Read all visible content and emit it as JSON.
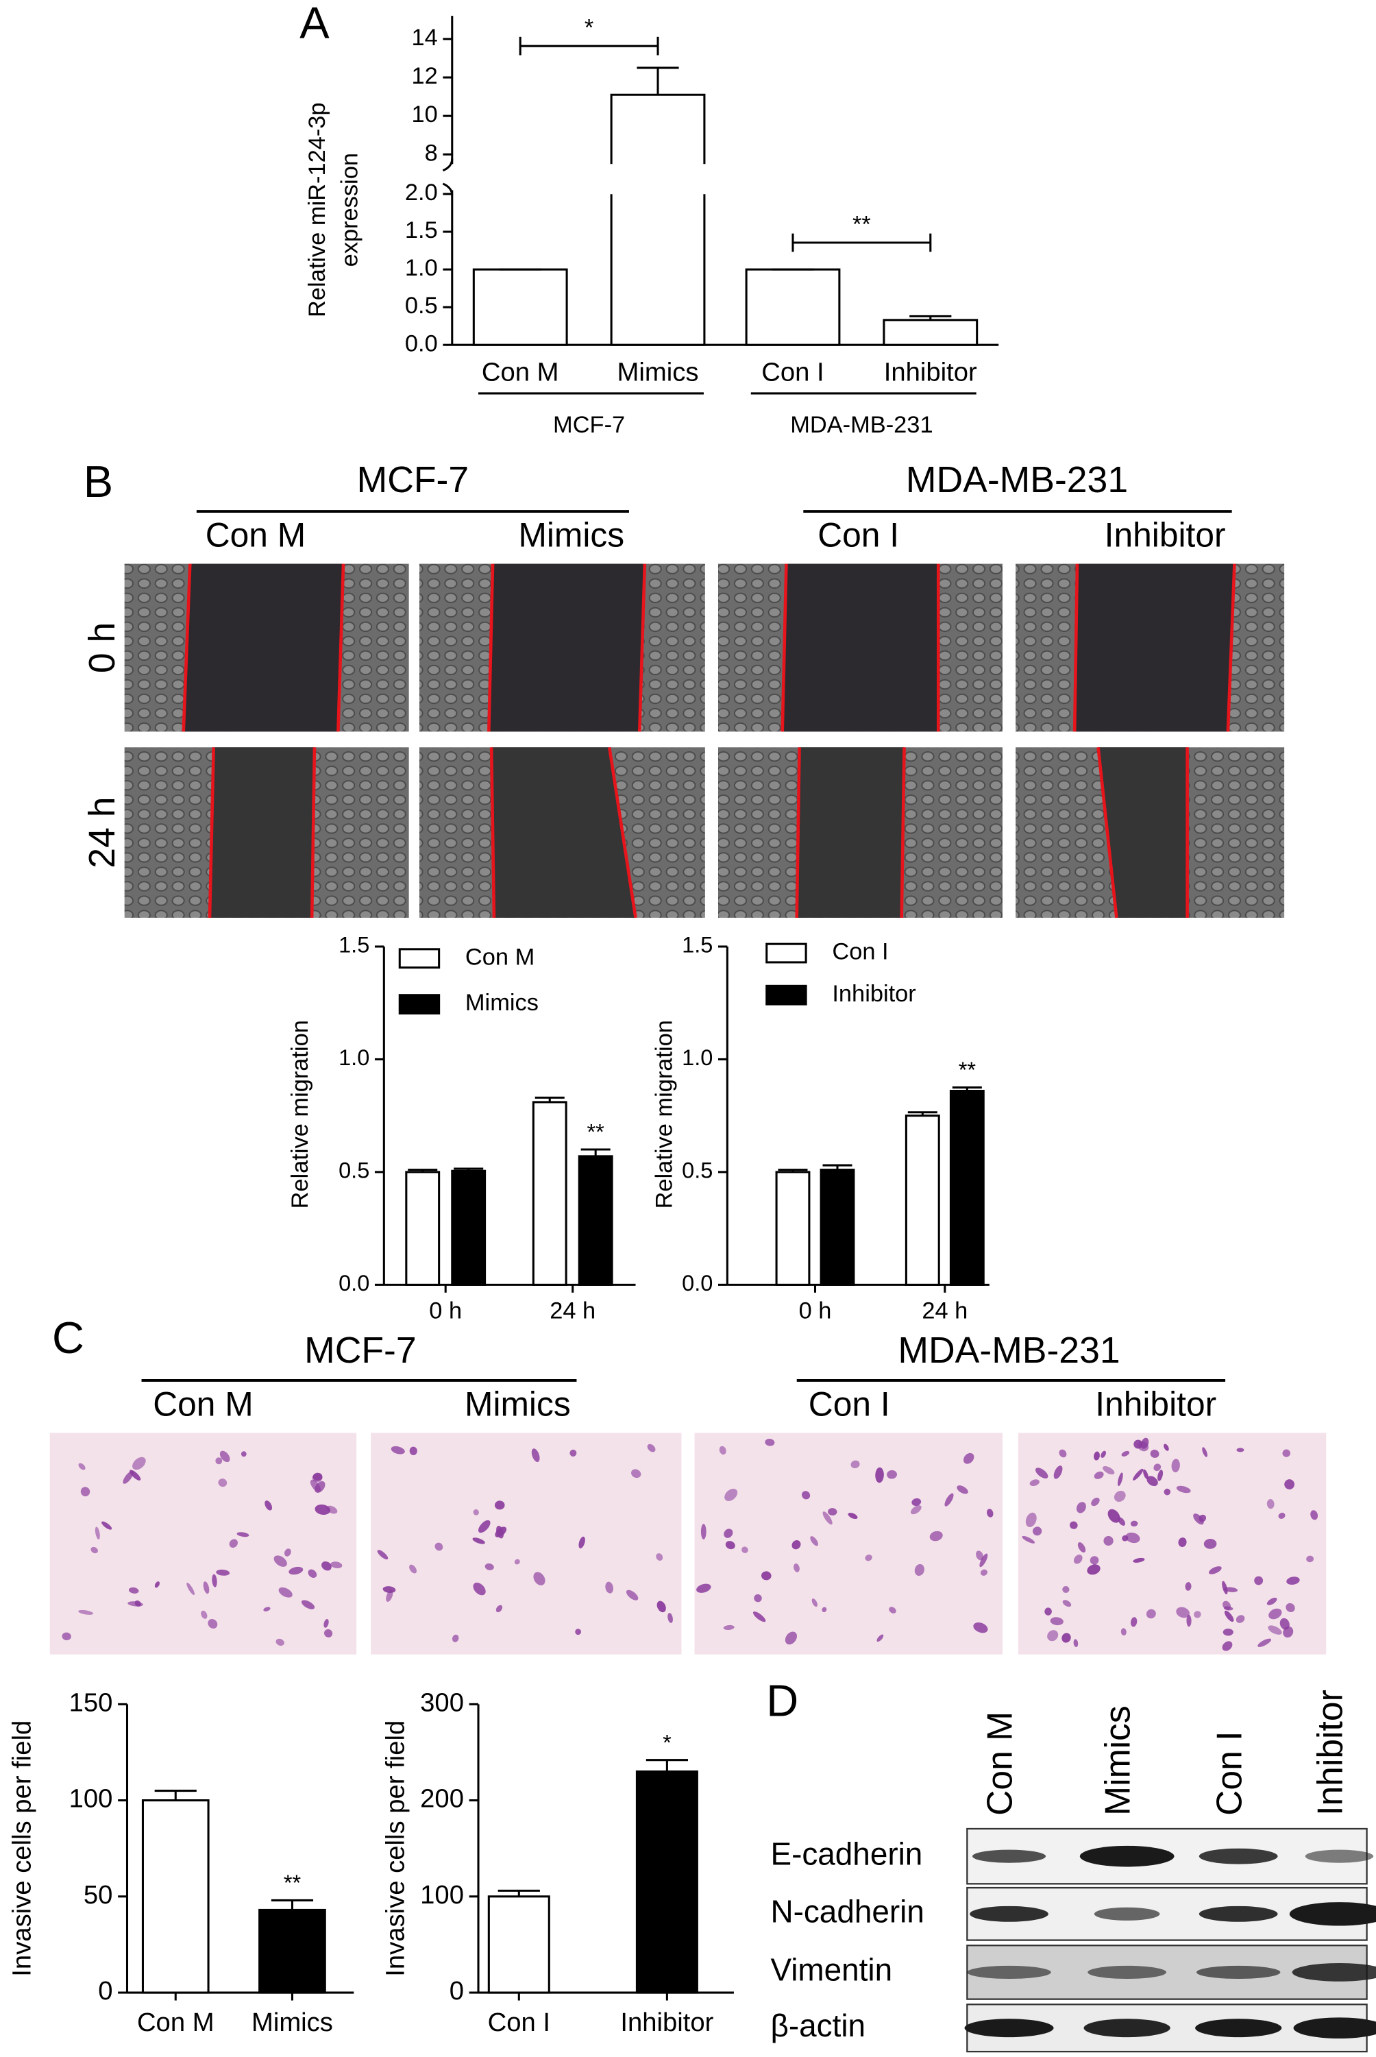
{
  "panel_labels": [
    "A",
    "B",
    "C",
    "D"
  ],
  "chart_data": [
    {
      "type": "bar",
      "categories": [
        "Con M",
        "Mimics",
        "Con I",
        "Inhibitor"
      ],
      "values": [
        1,
        11.1,
        1,
        0.33
      ],
      "errors": [
        0,
        1.4,
        0,
        0.05
      ],
      "color": "#ffffff",
      "ylabel": [
        "Relative miR-124-3p",
        "expression"
      ],
      "ylim": [
        0,
        2.05
      ],
      "yticks": [
        {
          "value": 0,
          "label": "0.0"
        },
        {
          "value": 0.5,
          "label": "0.5"
        },
        {
          "value": 1,
          "label": "1.0"
        },
        {
          "value": 1.5,
          "label": "1.5"
        },
        {
          "value": 2,
          "label": "2.0"
        }
      ],
      "axis_break": true,
      "ylim_upper": [
        7.5,
        15.2
      ],
      "yticks_upper": [
        8,
        10,
        12,
        14
      ],
      "groups": [
        {
          "label": "MCF-7",
          "categories": [
            "Con M",
            "Mimics"
          ]
        },
        {
          "label": "MDA-MB-231",
          "categories": [
            "Con I",
            "Inhibitor"
          ]
        }
      ],
      "brackets": [
        {
          "text": "*",
          "from": "Con M",
          "to": "Mimics"
        },
        {
          "text": "**",
          "from": "Con I",
          "to": "Inhibitor"
        }
      ]
    },
    {
      "type": "grouped_bar",
      "categories": [
        "0 h",
        "24 h"
      ],
      "series": [
        {
          "name": "Con M",
          "color": "#ffffff",
          "values": [
            0.5,
            0.81
          ],
          "errors": [
            0.01,
            0.02
          ]
        },
        {
          "name": "Mimics",
          "color": "#000000",
          "values": [
            0.505,
            0.57
          ],
          "errors": [
            0.01,
            0.03
          ]
        }
      ],
      "ylabel": "Relative migration",
      "ylim": [
        0,
        1.5
      ],
      "yticks": [
        {
          "value": 0,
          "label": "0.0"
        },
        {
          "value": 0.5,
          "label": "0.5"
        },
        {
          "value": 1,
          "label": "1.0"
        },
        {
          "value": 1.5,
          "label": "1.5"
        }
      ],
      "legend": "upper left",
      "annotations": [
        {
          "text": "**",
          "series": "Mimics",
          "category": "24 h"
        }
      ]
    },
    {
      "type": "grouped_bar",
      "categories": [
        "0 h",
        "24 h"
      ],
      "series": [
        {
          "name": "Con I",
          "color": "#ffffff",
          "values": [
            0.5,
            0.75
          ],
          "errors": [
            0.01,
            0.015
          ]
        },
        {
          "name": "Inhibitor",
          "color": "#000000",
          "values": [
            0.51,
            0.86
          ],
          "errors": [
            0.02,
            0.015
          ]
        }
      ],
      "ylabel": "Relative migration",
      "ylim": [
        0,
        1.5
      ],
      "yticks": [
        {
          "value": 0,
          "label": "0.0"
        },
        {
          "value": 0.5,
          "label": "0.5"
        },
        {
          "value": 1,
          "label": "1.0"
        },
        {
          "value": 1.5,
          "label": "1.5"
        }
      ],
      "legend": "upper left",
      "annotations": [
        {
          "text": "**",
          "series": "Inhibitor",
          "category": "24 h"
        }
      ]
    },
    {
      "type": "bar",
      "categories": [
        "Con M",
        "Mimics"
      ],
      "values": [
        100,
        43
      ],
      "errors": [
        5,
        5
      ],
      "colors": [
        "#ffffff",
        "#000000"
      ],
      "ylabel": "Invasive cells per field",
      "ylim": [
        0,
        150
      ],
      "yticks": [
        0,
        50,
        100,
        150
      ],
      "annotations": [
        {
          "text": "**",
          "category": "Mimics"
        }
      ]
    },
    {
      "type": "bar",
      "categories": [
        "Con I",
        "Inhibitor"
      ],
      "values": [
        100,
        230
      ],
      "errors": [
        6,
        12
      ],
      "colors": [
        "#ffffff",
        "#000000"
      ],
      "ylabel": "Invasive cells per field",
      "ylim": [
        0,
        300
      ],
      "yticks": [
        0,
        100,
        200,
        300
      ],
      "annotations": [
        {
          "text": "*",
          "category": "Inhibitor"
        }
      ]
    }
  ],
  "migration_assay": {
    "cell_lines": [
      {
        "name": "MCF-7",
        "groups": [
          "Con M",
          "Mimics"
        ]
      },
      {
        "name": "MDA-MB-231",
        "groups": [
          "Con I",
          "Inhibitor"
        ]
      }
    ],
    "timepoints": [
      "0 h",
      "24 h"
    ]
  },
  "invasion_assay": {
    "cell_lines": [
      {
        "name": "MCF-7",
        "groups": [
          "Con M",
          "Mimics"
        ]
      },
      {
        "name": "MDA-MB-231",
        "groups": [
          "Con I",
          "Inhibitor"
        ]
      }
    ]
  },
  "western_blot": {
    "lanes": [
      "Con M",
      "Mimics",
      "Con I",
      "Inhibitor"
    ],
    "proteins": [
      "E-cadherin",
      "N-cadherin",
      "Vimentin",
      "β-actin"
    ]
  }
}
